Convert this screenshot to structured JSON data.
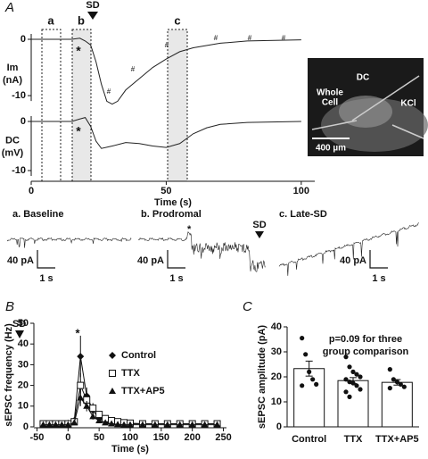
{
  "figure": {
    "panel_a": "A",
    "panel_b": "B",
    "panel_c": "C",
    "windows": [
      "a",
      "b",
      "c"
    ],
    "sd": "SD",
    "star": "*",
    "hashes": [
      "#",
      "#",
      "#",
      "#",
      "#",
      "#"
    ],
    "inset": {
      "dc": "DC",
      "whole_cell": [
        "Whole",
        "Cell"
      ],
      "kcl": "KCl",
      "scale": "400 µm"
    },
    "traces": [
      {
        "label": "a. Baseline",
        "scale_y": "40 pA",
        "scale_x": "1 s"
      },
      {
        "label": "b. Prodromal",
        "scale_y": "40 pA",
        "scale_x": "1 s"
      },
      {
        "label": "c. Late-SD",
        "scale_y": "40 pA",
        "scale_x": "1 s"
      }
    ]
  },
  "chart_data": [
    {
      "type": "line",
      "y_label": [
        "Im",
        "(nA)"
      ],
      "xlim": [
        0,
        105
      ],
      "ylim": [
        -13,
        1
      ],
      "yticks": [
        0,
        -10
      ],
      "series": [
        {
          "color": "#222222",
          "x": [
            0,
            10,
            15,
            18,
            20,
            22,
            24,
            26,
            28,
            30,
            32,
            35,
            40,
            45,
            50,
            55,
            60,
            70,
            80,
            100
          ],
          "values": [
            0,
            0,
            0,
            0.2,
            -0.3,
            -1,
            -4,
            -8,
            -11,
            -11.5,
            -11,
            -9,
            -7,
            -5,
            -3.5,
            -2.2,
            -1.5,
            -0.7,
            -0.3,
            -0.1
          ]
        }
      ]
    },
    {
      "type": "line",
      "y_label": [
        "DC",
        "(mV)"
      ],
      "x_label": "Time (s)",
      "xlim": [
        0,
        105
      ],
      "xticks": [
        0,
        50,
        100
      ],
      "ylim": [
        -12,
        2
      ],
      "yticks": [
        0,
        -10
      ],
      "series": [
        {
          "color": "#222222",
          "x": [
            0,
            15,
            18,
            20,
            22,
            24,
            26,
            30,
            35,
            40,
            45,
            50,
            55,
            60,
            65,
            70,
            80,
            100
          ],
          "values": [
            0,
            0,
            0.5,
            0.8,
            -1,
            -4,
            -5.5,
            -5,
            -4.3,
            -4.5,
            -5,
            -5.3,
            -4.5,
            -2.5,
            -1.3,
            -0.6,
            -0.2,
            0
          ]
        }
      ]
    },
    {
      "type": "errorline",
      "x_label": "Time (s)",
      "y_label": "sEPSC frequency (Hz)",
      "xlim": [
        -55,
        255
      ],
      "xticks": [
        -50,
        0,
        50,
        100,
        150,
        200,
        250
      ],
      "ylim": [
        0,
        50
      ],
      "yticks": [
        0,
        10,
        20,
        30,
        40,
        50
      ],
      "x": [
        -40,
        -30,
        -20,
        -10,
        0,
        10,
        20,
        30,
        40,
        50,
        60,
        70,
        80,
        90,
        100,
        120,
        140,
        160,
        180,
        200,
        220,
        240
      ],
      "series": [
        {
          "name": "Control",
          "marker": "diamond",
          "color": "#111111",
          "values": [
            1.5,
            1.5,
            1.5,
            1.5,
            1.8,
            3,
            34,
            15,
            8,
            4,
            2.5,
            2,
            1.8,
            1.5,
            1.5,
            1.5,
            1.5,
            1.5,
            1.5,
            1.5,
            1.5,
            1.5
          ],
          "errors": [
            0.5,
            0.5,
            0.5,
            0.5,
            0.6,
            1.5,
            10,
            4,
            2.5,
            1.5,
            1,
            0.6,
            0.5,
            0.5,
            0.5,
            0.5,
            0.5,
            0.5,
            0.5,
            0.5,
            0.5,
            0.5
          ]
        },
        {
          "name": "TTX",
          "marker": "square-open",
          "color": "#111111",
          "values": [
            1.5,
            1.5,
            1.5,
            1.5,
            1.5,
            2.5,
            20,
            13,
            9,
            6,
            4,
            3,
            2.5,
            2,
            1.8,
            1.5,
            1.5,
            1.5,
            1.5,
            1.5,
            1.5,
            1.5
          ],
          "errors": [
            0.5,
            0.5,
            0.5,
            0.5,
            0.5,
            1,
            6,
            4,
            2.5,
            1.5,
            1,
            0.8,
            0.6,
            0.5,
            0.5,
            0.5,
            0.5,
            0.5,
            0.5,
            0.5,
            0.5,
            0.5
          ]
        },
        {
          "name": "TTX+AP5",
          "marker": "triangle",
          "color": "#111111",
          "values": [
            1,
            1,
            1,
            1,
            1,
            2,
            14,
            10,
            5,
            3,
            2,
            1.5,
            1.2,
            1,
            1,
            1,
            1,
            1,
            1,
            1,
            1,
            1
          ],
          "errors": [
            0.4,
            0.4,
            0.4,
            0.4,
            0.4,
            0.8,
            4,
            2.5,
            1.5,
            1,
            0.6,
            0.5,
            0.4,
            0.4,
            0.4,
            0.4,
            0.4,
            0.4,
            0.4,
            0.4,
            0.4,
            0.4
          ]
        }
      ]
    },
    {
      "type": "bar",
      "y_label": "sEPSC amplitude (pA)",
      "annotation": [
        "p=0.09 for three",
        "group comparison"
      ],
      "categories": [
        "Control",
        "TTX",
        "TTX+AP5"
      ],
      "values": [
        23.3,
        18.5,
        17.8
      ],
      "errors": [
        3,
        1.2,
        1.1
      ],
      "color": "#ffffff",
      "ylim": [
        0,
        40
      ],
      "yticks": [
        0,
        10,
        20,
        30,
        40
      ],
      "points": [
        [
          35.5,
          29,
          22,
          19,
          17,
          16.5
        ],
        [
          28,
          24,
          22,
          21,
          20,
          19,
          18,
          17.5,
          16.5,
          15,
          14,
          12
        ],
        [
          23,
          19,
          18,
          17,
          16,
          15.5
        ]
      ]
    }
  ]
}
